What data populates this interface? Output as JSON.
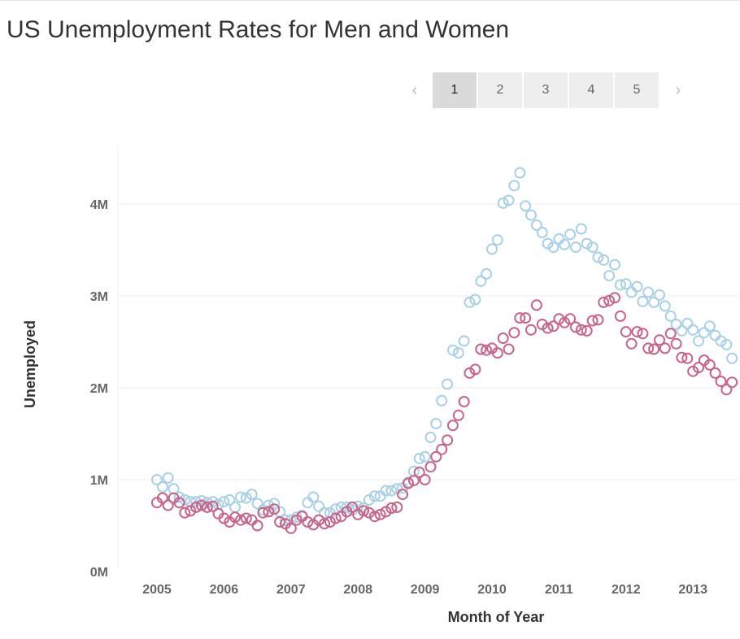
{
  "title": "US Unemployment Rates for Men and Women",
  "pagination": {
    "prev_icon": "chevron-left-icon",
    "next_icon": "chevron-right-icon",
    "pages": [
      "1",
      "2",
      "3",
      "4",
      "5"
    ],
    "active": "1"
  },
  "chart_data": {
    "type": "scatter",
    "title": "US Unemployment Rates for Men and Women",
    "xlabel": "Month of Year",
    "ylabel": "Unemployed",
    "xlim": [
      2004.5,
      2013.6
    ],
    "ylim": [
      -50000,
      4700000
    ],
    "x_ticks": [
      "2005",
      "2006",
      "2007",
      "2008",
      "2009",
      "2010",
      "2011",
      "2012",
      "2013"
    ],
    "y_ticks": [
      "0M",
      "1M",
      "2M",
      "3M",
      "4M"
    ],
    "grid": "horizontal",
    "legend": "none",
    "series": [
      {
        "color": "#a8d0e6",
        "start": 2005.0,
        "step": 0.08333,
        "values": [
          1000000,
          920000,
          1020000,
          900000,
          810000,
          780000,
          760000,
          760000,
          770000,
          750000,
          760000,
          730000,
          760000,
          780000,
          700000,
          810000,
          800000,
          840000,
          740000,
          670000,
          720000,
          740000,
          650000,
          560000,
          560000,
          590000,
          610000,
          750000,
          810000,
          710000,
          640000,
          640000,
          680000,
          700000,
          700000,
          670000,
          710000,
          690000,
          780000,
          820000,
          820000,
          880000,
          880000,
          900000,
          910000,
          970000,
          1090000,
          1230000,
          1250000,
          1460000,
          1610000,
          1860000,
          2040000,
          2410000,
          2380000,
          2510000,
          2930000,
          2960000,
          3160000,
          3240000,
          3510000,
          3610000,
          4010000,
          4040000,
          4200000,
          4340000,
          3980000,
          3880000,
          3770000,
          3690000,
          3570000,
          3530000,
          3620000,
          3560000,
          3670000,
          3530000,
          3730000,
          3570000,
          3530000,
          3420000,
          3390000,
          3220000,
          3340000,
          3120000,
          3130000,
          3040000,
          3100000,
          2940000,
          3040000,
          2930000,
          3010000,
          2890000,
          2780000,
          2690000,
          2620000,
          2700000,
          2630000,
          2510000,
          2600000,
          2670000,
          2570000,
          2510000,
          2470000,
          2320000
        ]
      },
      {
        "color": "#c8638a",
        "start": 2005.0,
        "step": 0.08333,
        "values": [
          750000,
          800000,
          720000,
          800000,
          750000,
          640000,
          660000,
          700000,
          720000,
          700000,
          710000,
          630000,
          580000,
          540000,
          590000,
          560000,
          580000,
          560000,
          500000,
          640000,
          650000,
          680000,
          540000,
          520000,
          470000,
          560000,
          600000,
          540000,
          510000,
          560000,
          520000,
          540000,
          580000,
          600000,
          650000,
          700000,
          620000,
          660000,
          640000,
          600000,
          620000,
          650000,
          690000,
          700000,
          840000,
          960000,
          990000,
          1080000,
          1000000,
          1140000,
          1250000,
          1330000,
          1430000,
          1590000,
          1700000,
          1850000,
          2160000,
          2200000,
          2420000,
          2410000,
          2430000,
          2380000,
          2540000,
          2420000,
          2600000,
          2760000,
          2760000,
          2630000,
          2900000,
          2690000,
          2650000,
          2670000,
          2750000,
          2710000,
          2750000,
          2660000,
          2630000,
          2620000,
          2730000,
          2740000,
          2930000,
          2950000,
          2980000,
          2780000,
          2610000,
          2480000,
          2610000,
          2590000,
          2430000,
          2420000,
          2520000,
          2430000,
          2590000,
          2480000,
          2330000,
          2320000,
          2180000,
          2220000,
          2300000,
          2250000,
          2160000,
          2070000,
          1980000,
          2060000
        ]
      }
    ]
  }
}
